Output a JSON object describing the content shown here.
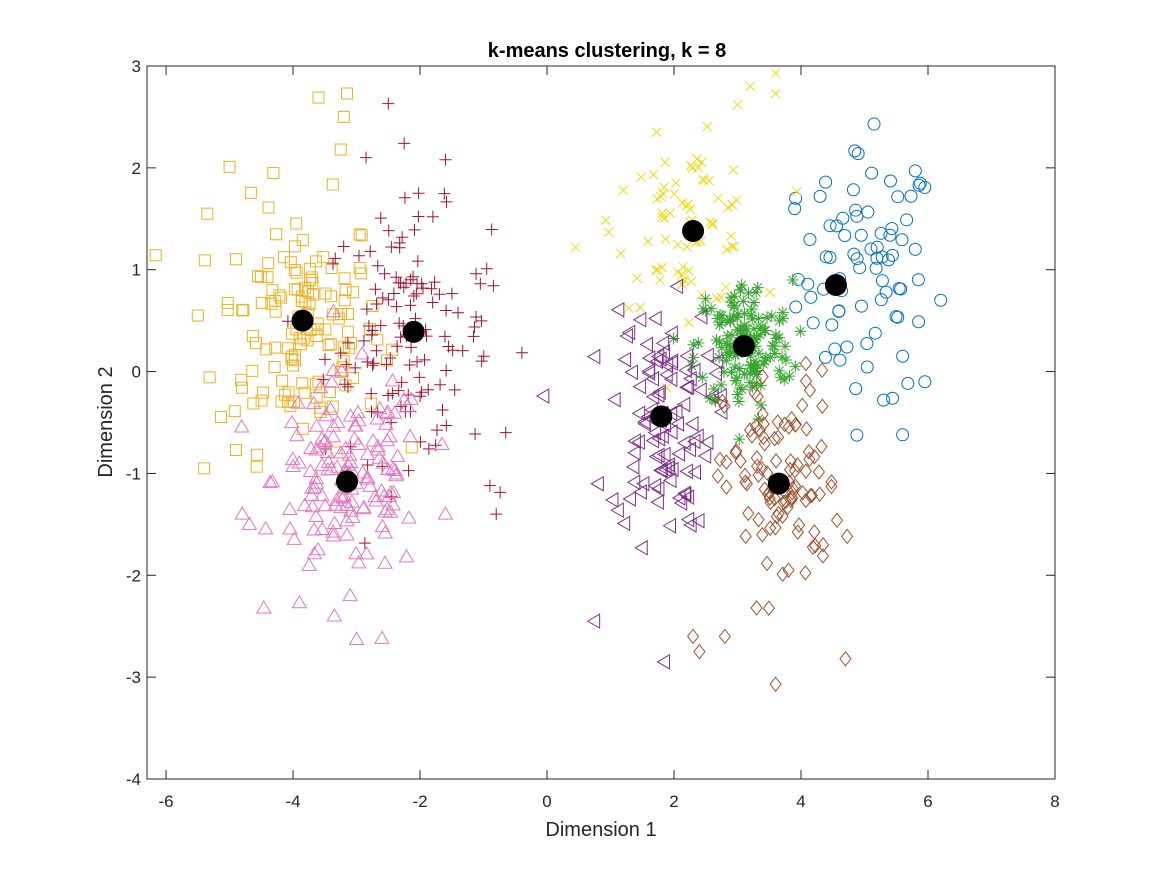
{
  "chart_data": {
    "type": "scatter",
    "title": "k-means clustering, k = 8",
    "xlabel": "Dimension 1",
    "ylabel": "Dimension 2",
    "xlim": [
      -6.3,
      8
    ],
    "ylim": [
      -4,
      3
    ],
    "xticks": [
      -6,
      -4,
      -2,
      0,
      2,
      4,
      6,
      8
    ],
    "xtick_labels": [
      "-6",
      "-4",
      "-2",
      "0",
      "2",
      "4",
      "6",
      "8"
    ],
    "yticks": [
      -4,
      -3,
      -2,
      -1,
      0,
      1,
      2,
      3
    ],
    "ytick_labels": [
      "-4",
      "-3",
      "-2",
      "-1",
      "0",
      "1",
      "2",
      "3"
    ],
    "grid": false,
    "legend": false,
    "clusters": [
      {
        "marker": "circle",
        "color": "#0072BD",
        "center": [
          5.05,
          0.95
        ],
        "spread": [
          0.55,
          0.6
        ],
        "count": 80,
        "points": [
          [
            5.15,
            2.43
          ],
          [
            5.8,
            1.97
          ],
          [
            4.9,
            2.14
          ],
          [
            6.2,
            0.7
          ],
          [
            5.95,
            -0.1
          ],
          [
            5.6,
            -0.62
          ],
          [
            5.6,
            0.15
          ],
          [
            5.8,
            1.2
          ],
          [
            5.2,
            1.22
          ],
          [
            5.3,
            -0.28
          ],
          [
            4.3,
            1.72
          ],
          [
            3.9,
            1.6
          ]
        ]
      },
      {
        "marker": "square",
        "color": "#EDB120",
        "comment_color": "orange",
        "center": [
          -3.9,
          0.45
        ],
        "spread": [
          0.65,
          0.6
        ],
        "count": 140,
        "points": [
          [
            -3.6,
            2.69
          ],
          [
            -3.15,
            2.73
          ],
          [
            -5.0,
            2.01
          ],
          [
            -5.35,
            1.55
          ],
          [
            -5.5,
            0.55
          ],
          [
            -5.4,
            -0.95
          ],
          [
            -4.9,
            -0.77
          ],
          [
            -3.2,
            2.5
          ],
          [
            -3.25,
            2.18
          ]
        ]
      },
      {
        "marker": "plus",
        "color": "#A2142F",
        "center": [
          -2.2,
          0.35
        ],
        "spread": [
          0.65,
          0.6
        ],
        "count": 140,
        "points": [
          [
            -2.5,
            2.63
          ],
          [
            -2.25,
            2.24
          ],
          [
            -1.6,
            2.08
          ],
          [
            -2.85,
            2.1
          ],
          [
            -0.95,
            1.01
          ],
          [
            -0.65,
            -0.6
          ],
          [
            -0.8,
            -1.4
          ],
          [
            -0.9,
            -1.12
          ]
        ]
      },
      {
        "marker": "triangle-up",
        "color": "#E377C2",
        "center": [
          -3.1,
          -1.05
        ],
        "spread": [
          0.6,
          0.5
        ],
        "count": 150,
        "points": [
          [
            -2.6,
            -2.62
          ],
          [
            -3.0,
            -2.63
          ],
          [
            -3.35,
            -2.4
          ],
          [
            -3.9,
            -2.27
          ],
          [
            -3.1,
            -2.2
          ],
          [
            -4.8,
            -1.4
          ],
          [
            -1.6,
            -1.4
          ]
        ]
      },
      {
        "marker": "x",
        "color": "#EDD813",
        "center": [
          2.2,
          1.45
        ],
        "spread": [
          0.55,
          0.4
        ],
        "count": 80,
        "points": [
          [
            3.6,
            2.93
          ],
          [
            3.2,
            2.8
          ],
          [
            3.6,
            2.73
          ],
          [
            3.0,
            2.62
          ],
          [
            0.45,
            1.22
          ],
          [
            1.2,
            1.78
          ]
        ]
      },
      {
        "marker": "asterisk",
        "color": "#3AA632",
        "center": [
          3.1,
          0.25
        ],
        "spread": [
          0.38,
          0.32
        ],
        "count": 150,
        "points": []
      },
      {
        "marker": "triangle-left",
        "color": "#7E2F8E",
        "center": [
          1.8,
          -0.45
        ],
        "spread": [
          0.4,
          0.55
        ],
        "count": 110,
        "points": [
          [
            -0.05,
            -0.24
          ],
          [
            0.75,
            -2.45
          ],
          [
            1.85,
            -2.85
          ],
          [
            1.5,
            -1.73
          ]
        ]
      },
      {
        "marker": "diamond",
        "color": "#A0522D",
        "center": [
          3.7,
          -1.1
        ],
        "spread": [
          0.45,
          0.55
        ],
        "count": 110,
        "points": [
          [
            3.6,
            -3.07
          ],
          [
            4.7,
            -2.82
          ],
          [
            2.3,
            -2.6
          ],
          [
            2.4,
            -2.75
          ],
          [
            2.8,
            -2.6
          ],
          [
            3.3,
            -2.32
          ]
        ]
      }
    ],
    "centroids": [
      {
        "x": -3.85,
        "y": 0.5
      },
      {
        "x": -2.1,
        "y": 0.39
      },
      {
        "x": -3.15,
        "y": -1.08
      },
      {
        "x": 2.3,
        "y": 1.38
      },
      {
        "x": 4.55,
        "y": 0.85
      },
      {
        "x": 3.1,
        "y": 0.25
      },
      {
        "x": 1.8,
        "y": -0.44
      },
      {
        "x": 3.65,
        "y": -1.1
      }
    ],
    "centroid_color": "#000000"
  }
}
